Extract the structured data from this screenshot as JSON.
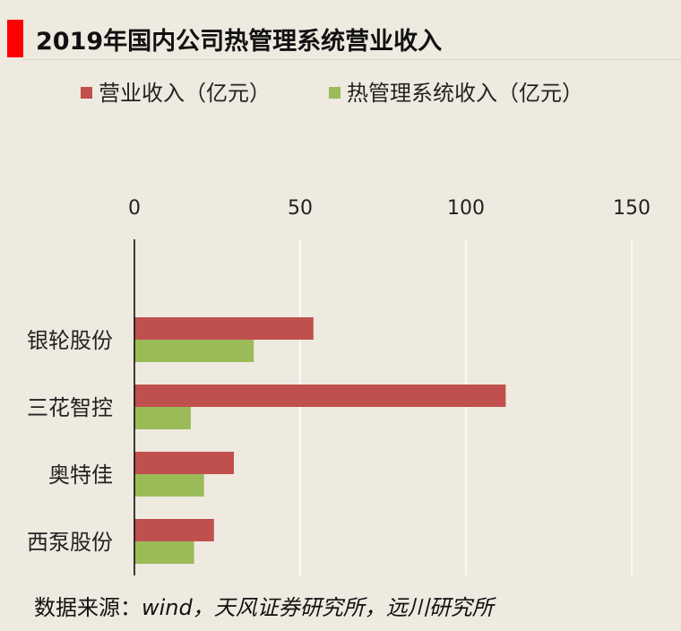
{
  "title": "2019年国内公司热管理系统营业收入",
  "source_label": "数据来源：",
  "source_text": "wind，天风证券研究所，远川研究所",
  "colors": {
    "revenue": "#c0504d",
    "thermal": "#9bbb59",
    "accent": "#ff0000",
    "background": "#eeeae0",
    "grid": "#ffffff",
    "axis": "#000000"
  },
  "chart_data": {
    "type": "bar",
    "orientation": "horizontal",
    "title": "2019年国内公司热管理系统营业收入",
    "xlabel": "",
    "ylabel": "",
    "xlim": [
      0,
      150
    ],
    "xticks": [
      0,
      50,
      100,
      150
    ],
    "x_axis_position": "top",
    "grid": true,
    "legend_position": "top",
    "categories": [
      "银轮股份",
      "三花智控",
      "奥特佳",
      "西泵股份"
    ],
    "series": [
      {
        "name": "营业收入（亿元）",
        "values": [
          54,
          112,
          30,
          24
        ]
      },
      {
        "name": "热管理系统收入（亿元）",
        "values": [
          36,
          17,
          21,
          18
        ]
      }
    ]
  }
}
